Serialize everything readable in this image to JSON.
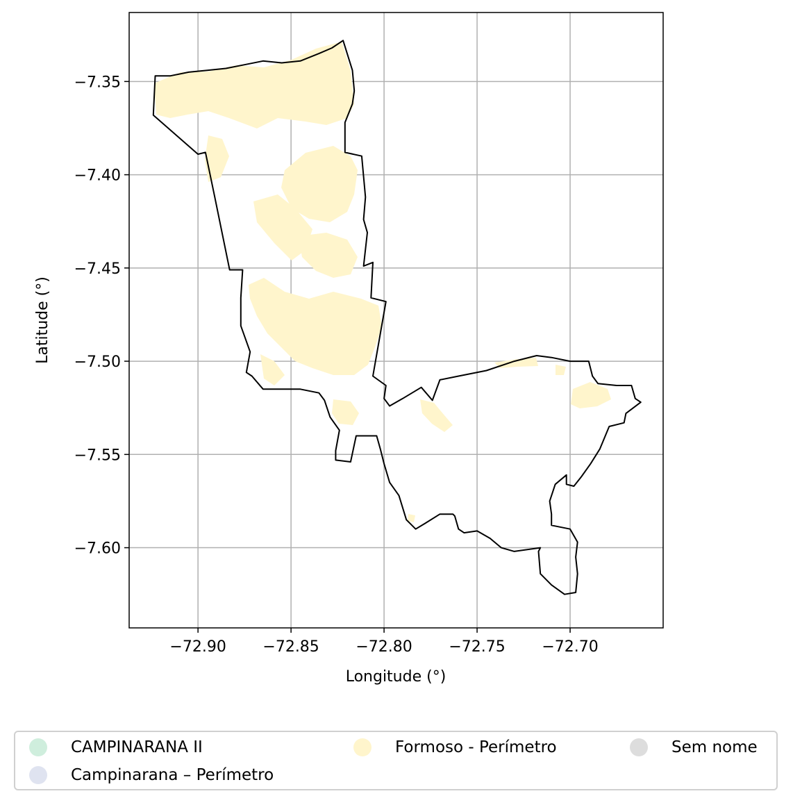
{
  "chart_data": {
    "type": "map",
    "xlabel": "Longitude (°)",
    "ylabel": "Latitude (°)",
    "xlim": [
      -72.937,
      -72.65
    ],
    "ylim": [
      -7.643,
      -7.313
    ],
    "grid": true,
    "x_ticks": [
      {
        "value": -72.9,
        "label": "−72.90"
      },
      {
        "value": -72.85,
        "label": "−72.85"
      },
      {
        "value": -72.8,
        "label": "−72.80"
      },
      {
        "value": -72.75,
        "label": "−72.75"
      },
      {
        "value": -72.7,
        "label": "−72.70"
      }
    ],
    "y_ticks": [
      {
        "value": -7.35,
        "label": "−7.35"
      },
      {
        "value": -7.4,
        "label": "−7.40"
      },
      {
        "value": -7.45,
        "label": "−7.45"
      },
      {
        "value": -7.5,
        "label": "−7.50"
      },
      {
        "value": -7.55,
        "label": "−7.55"
      },
      {
        "value": -7.6,
        "label": "−7.60"
      }
    ],
    "boundary": [
      [
        -72.923,
        -7.347
      ],
      [
        -72.915,
        -7.347
      ],
      [
        -72.905,
        -7.345
      ],
      [
        -72.895,
        -7.344
      ],
      [
        -72.885,
        -7.343
      ],
      [
        -72.875,
        -7.341
      ],
      [
        -72.865,
        -7.339
      ],
      [
        -72.855,
        -7.34
      ],
      [
        -72.845,
        -7.339
      ],
      [
        -72.835,
        -7.335
      ],
      [
        -72.828,
        -7.332
      ],
      [
        -72.822,
        -7.328
      ],
      [
        -72.817,
        -7.344
      ],
      [
        -72.816,
        -7.355
      ],
      [
        -72.817,
        -7.362
      ],
      [
        -72.821,
        -7.372
      ],
      [
        -72.821,
        -7.388
      ],
      [
        -72.812,
        -7.39
      ],
      [
        -72.81,
        -7.412
      ],
      [
        -72.811,
        -7.424
      ],
      [
        -72.809,
        -7.431
      ],
      [
        -72.811,
        -7.449
      ],
      [
        -72.806,
        -7.447
      ],
      [
        -72.807,
        -7.466
      ],
      [
        -72.799,
        -7.468
      ],
      [
        -72.806,
        -7.508
      ],
      [
        -72.799,
        -7.513
      ],
      [
        -72.8,
        -7.52
      ],
      [
        -72.797,
        -7.524
      ],
      [
        -72.79,
        -7.52
      ],
      [
        -72.78,
        -7.514
      ],
      [
        -72.774,
        -7.521
      ],
      [
        -72.77,
        -7.51
      ],
      [
        -72.76,
        -7.508
      ],
      [
        -72.745,
        -7.505
      ],
      [
        -72.73,
        -7.5
      ],
      [
        -72.718,
        -7.497
      ],
      [
        -72.71,
        -7.498
      ],
      [
        -72.7,
        -7.5
      ],
      [
        -72.69,
        -7.5
      ],
      [
        -72.688,
        -7.508
      ],
      [
        -72.685,
        -7.512
      ],
      [
        -72.675,
        -7.513
      ],
      [
        -72.667,
        -7.513
      ],
      [
        -72.665,
        -7.52
      ],
      [
        -72.662,
        -7.522
      ],
      [
        -72.67,
        -7.528
      ],
      [
        -72.671,
        -7.533
      ],
      [
        -72.679,
        -7.535
      ],
      [
        -72.684,
        -7.547
      ],
      [
        -72.689,
        -7.555
      ],
      [
        -72.694,
        -7.562
      ],
      [
        -72.698,
        -7.567
      ],
      [
        -72.702,
        -7.566
      ],
      [
        -72.702,
        -7.561
      ],
      [
        -72.708,
        -7.566
      ],
      [
        -72.711,
        -7.575
      ],
      [
        -72.71,
        -7.582
      ],
      [
        -72.71,
        -7.588
      ],
      [
        -72.7,
        -7.59
      ],
      [
        -72.696,
        -7.597
      ],
      [
        -72.697,
        -7.605
      ],
      [
        -72.696,
        -7.614
      ],
      [
        -72.697,
        -7.624
      ],
      [
        -72.703,
        -7.625
      ],
      [
        -72.71,
        -7.62
      ],
      [
        -72.716,
        -7.614
      ],
      [
        -72.717,
        -7.602
      ],
      [
        -72.716,
        -7.6
      ],
      [
        -72.73,
        -7.602
      ],
      [
        -72.737,
        -7.6
      ],
      [
        -72.743,
        -7.595
      ],
      [
        -72.75,
        -7.591
      ],
      [
        -72.757,
        -7.592
      ],
      [
        -72.76,
        -7.59
      ],
      [
        -72.762,
        -7.583
      ],
      [
        -72.763,
        -7.582
      ],
      [
        -72.77,
        -7.582
      ],
      [
        -72.778,
        -7.587
      ],
      [
        -72.783,
        -7.59
      ],
      [
        -72.788,
        -7.585
      ],
      [
        -72.792,
        -7.572
      ],
      [
        -72.797,
        -7.565
      ],
      [
        -72.8,
        -7.555
      ],
      [
        -72.802,
        -7.547
      ],
      [
        -72.804,
        -7.54
      ],
      [
        -72.815,
        -7.54
      ],
      [
        -72.818,
        -7.554
      ],
      [
        -72.826,
        -7.553
      ],
      [
        -72.826,
        -7.548
      ],
      [
        -72.824,
        -7.537
      ],
      [
        -72.829,
        -7.53
      ],
      [
        -72.832,
        -7.521
      ],
      [
        -72.835,
        -7.517
      ],
      [
        -72.845,
        -7.515
      ],
      [
        -72.86,
        -7.515
      ],
      [
        -72.865,
        -7.515
      ],
      [
        -72.871,
        -7.508
      ],
      [
        -72.874,
        -7.506
      ],
      [
        -72.872,
        -7.495
      ],
      [
        -72.877,
        -7.481
      ],
      [
        -72.877,
        -7.466
      ],
      [
        -72.876,
        -7.451
      ],
      [
        -72.883,
        -7.451
      ],
      [
        -72.891,
        -7.412
      ],
      [
        -72.896,
        -7.388
      ],
      [
        -72.9,
        -7.389
      ],
      [
        -72.924,
        -7.368
      ],
      [
        -72.923,
        -7.347
      ]
    ],
    "fill_color_areas": "#fff5cc",
    "boundary_color": "#000000"
  },
  "legend": {
    "items": [
      {
        "label": "CAMPINARANA II",
        "color": "#cfeedd"
      },
      {
        "label": "Campinarana – Perímetro",
        "color": "#dfe3f0"
      },
      {
        "label": "Formoso - Perímetro",
        "color": "#fff5cc"
      },
      {
        "label": "Sem nome",
        "color": "#dddddd"
      }
    ]
  }
}
